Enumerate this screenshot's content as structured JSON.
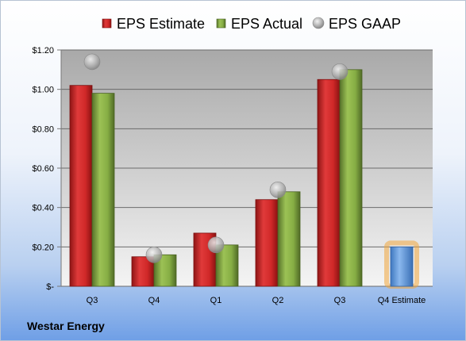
{
  "chart_data": {
    "type": "bar",
    "categories": [
      "Q3",
      "Q4",
      "Q1",
      "Q2",
      "Q3",
      "Q4 Estimate"
    ],
    "series": [
      {
        "name": "EPS Estimate",
        "values": [
          1.02,
          0.15,
          0.27,
          0.44,
          1.05,
          null
        ],
        "color": "#d52b2b",
        "marker": "bar"
      },
      {
        "name": "EPS Actual",
        "values": [
          0.98,
          0.16,
          0.21,
          0.48,
          1.1,
          null
        ],
        "color": "#7fa03d",
        "marker": "bar"
      },
      {
        "name": "EPS GAAP",
        "values": [
          1.14,
          0.16,
          0.21,
          0.49,
          1.09,
          null
        ],
        "color": "#a6a6a6",
        "marker": "bubble"
      }
    ],
    "estimate": {
      "category": "Q4 Estimate",
      "value": 0.2,
      "color": "#5b9bd5",
      "glow": "#f0a53c"
    },
    "ylim": [
      0,
      1.2
    ],
    "yticks": [
      {
        "value": 0,
        "label": "$-"
      },
      {
        "value": 0.2,
        "label": "$0.20"
      },
      {
        "value": 0.4,
        "label": "$0.40"
      },
      {
        "value": 0.6,
        "label": "$0.60"
      },
      {
        "value": 0.8,
        "label": "$0.80"
      },
      {
        "value": 1.0,
        "label": "$1.00"
      },
      {
        "value": 1.2,
        "label": "$1.20"
      }
    ],
    "grid": true,
    "legend": "top",
    "title": "",
    "xlabel": "",
    "ylabel": ""
  },
  "company": "Westar Energy"
}
